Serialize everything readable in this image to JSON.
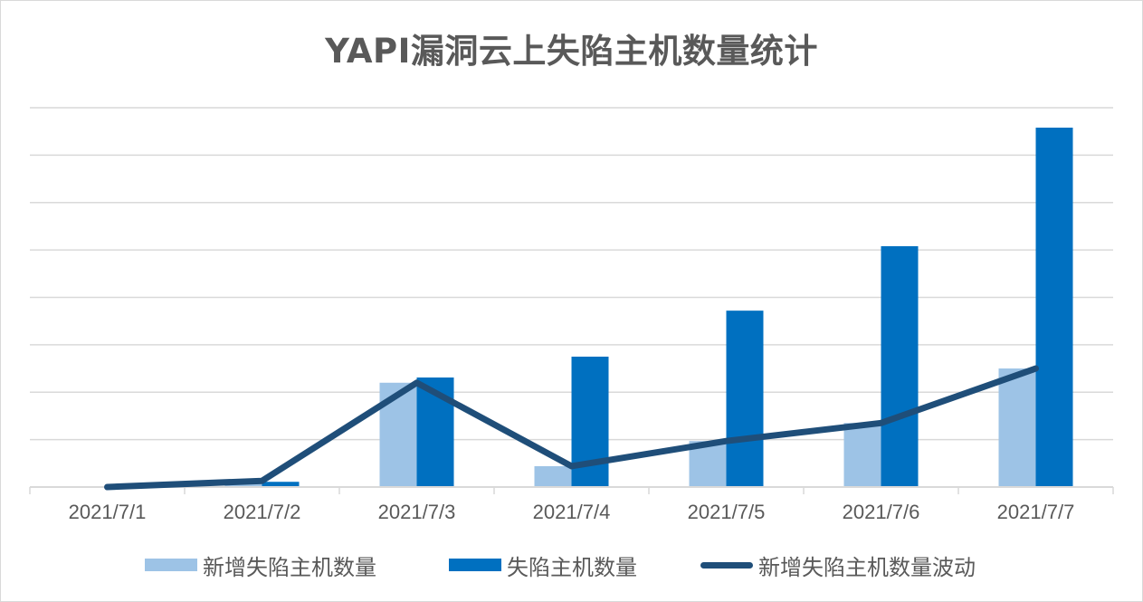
{
  "chart_data": {
    "type": "bar",
    "title": "YAPI漏洞云上失陷主机数量统计",
    "xlabel": "",
    "ylabel": "",
    "categories": [
      "2021/7/1",
      "2021/7/2",
      "2021/7/3",
      "2021/7/4",
      "2021/7/5",
      "2021/7/6",
      "2021/7/7"
    ],
    "series": [
      {
        "name": "新增失陷主机数量",
        "type": "bar",
        "color": "#9dc3e6",
        "values": [
          0,
          1.3,
          22.0,
          4.4,
          9.7,
          13.5,
          25.0
        ]
      },
      {
        "name": "失陷主机数量",
        "type": "bar",
        "color": "#0070c0",
        "values": [
          0,
          1.1,
          23.1,
          27.5,
          37.2,
          50.8,
          75.8
        ]
      },
      {
        "name": "新增失陷主机数量波动",
        "type": "line",
        "color": "#1f4e79",
        "values": [
          0,
          1.3,
          22.0,
          4.4,
          9.7,
          13.5,
          25.0
        ]
      }
    ],
    "ylim": [
      0,
      80
    ],
    "y_gridline_step": 10,
    "y_tick_labels_visible": false,
    "grid": true,
    "legend_position": "bottom",
    "note": "Y-axis has no labels; values estimated in gridline units (each gridline = 10)"
  },
  "title": "YAPI漏洞云上失陷主机数量统计",
  "legend": [
    {
      "label": "新增失陷主机数量",
      "kind": "bar",
      "color": "#9dc3e6"
    },
    {
      "label": "失陷主机数量",
      "kind": "bar",
      "color": "#0070c0"
    },
    {
      "label": "新增失陷主机数量波动",
      "kind": "line",
      "color": "#1f4e79"
    }
  ]
}
